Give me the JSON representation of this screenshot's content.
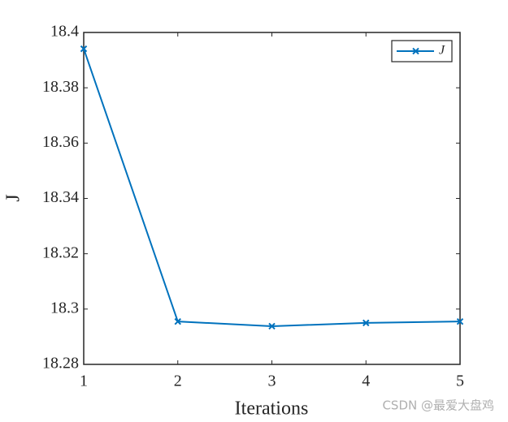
{
  "chart_data": {
    "type": "line",
    "x": [
      1,
      2,
      3,
      4,
      5
    ],
    "series": [
      {
        "name": "J",
        "color": "#0072bd",
        "values": [
          18.3941,
          18.2955,
          18.2938,
          18.295,
          18.2955
        ]
      }
    ],
    "xlim": [
      1,
      5
    ],
    "xticks": [
      1,
      2,
      3,
      4,
      5
    ],
    "ylim": [
      18.28,
      18.4
    ],
    "yticks": [
      18.28,
      18.3,
      18.32,
      18.34,
      18.36,
      18.38,
      18.4
    ],
    "xlabel": "Iterations",
    "ylabel": "J",
    "legend": "upper right",
    "grid": false
  },
  "watermark": "CSDN @最爱大盘鸡"
}
